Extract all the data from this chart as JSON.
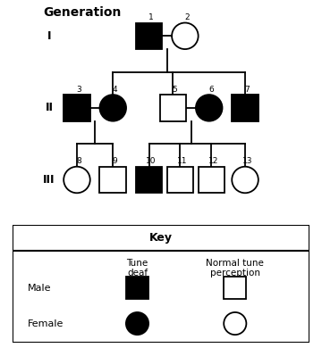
{
  "title": "Generation",
  "gen_labels": [
    "I",
    "II",
    "III"
  ],
  "bg_color": "#ffffff",
  "line_color": "#000000",
  "fill_affected": "#000000",
  "fill_normal": "#ffffff",
  "lw": 1.3,
  "individuals": [
    {
      "id": 1,
      "col": 4.5,
      "row": 8,
      "sex": "M",
      "affected": true
    },
    {
      "id": 2,
      "col": 6.0,
      "row": 8,
      "sex": "F",
      "affected": false
    },
    {
      "id": 3,
      "col": 1.5,
      "row": 5,
      "sex": "M",
      "affected": true
    },
    {
      "id": 4,
      "col": 3.0,
      "row": 5,
      "sex": "F",
      "affected": true
    },
    {
      "id": 5,
      "col": 5.5,
      "row": 5,
      "sex": "M",
      "affected": false
    },
    {
      "id": 6,
      "col": 7.0,
      "row": 5,
      "sex": "F",
      "affected": true
    },
    {
      "id": 7,
      "col": 8.5,
      "row": 5,
      "sex": "M",
      "affected": true
    },
    {
      "id": 8,
      "col": 1.5,
      "row": 2,
      "sex": "F",
      "affected": false
    },
    {
      "id": 9,
      "col": 3.0,
      "row": 2,
      "sex": "M",
      "affected": false
    },
    {
      "id": 10,
      "col": 4.5,
      "row": 2,
      "sex": "M",
      "affected": true
    },
    {
      "id": 11,
      "col": 5.8,
      "row": 2,
      "sex": "M",
      "affected": false
    },
    {
      "id": 12,
      "col": 7.1,
      "row": 2,
      "sex": "M",
      "affected": false
    },
    {
      "id": 13,
      "col": 8.5,
      "row": 2,
      "sex": "F",
      "affected": false
    }
  ],
  "sz": 0.55,
  "xlim": [
    0,
    10
  ],
  "ylim": [
    0.5,
    9.5
  ],
  "gen_x": 0.35,
  "gen_rows": [
    8,
    5,
    2
  ]
}
